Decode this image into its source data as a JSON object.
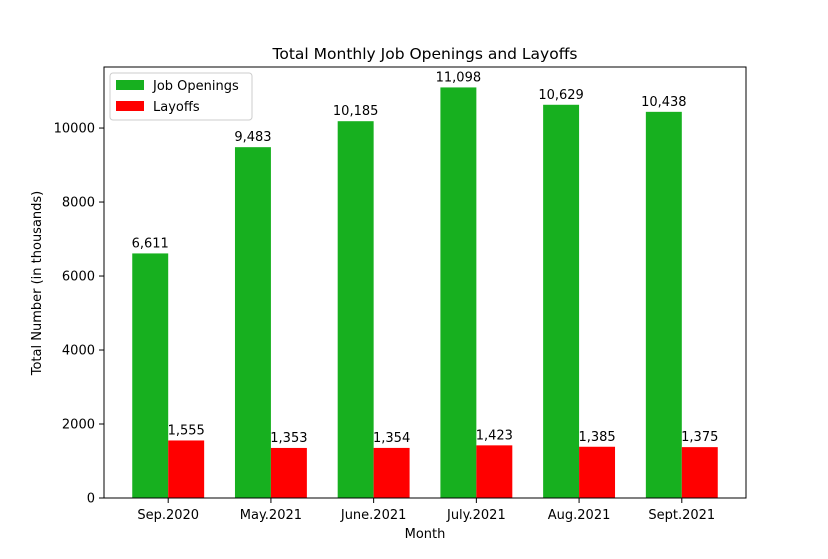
{
  "chart_data": {
    "type": "bar",
    "title": "Total Monthly Job Openings and Layoffs",
    "xlabel": "Month",
    "ylabel": "Total Number (in thousands)",
    "categories": [
      "Sep.2020",
      "May.2021",
      "June.2021",
      "July.2021",
      "Aug.2021",
      "Sept.2021"
    ],
    "series": [
      {
        "name": "Job Openings",
        "color": "#17b01f",
        "values": [
          6611,
          9483,
          10185,
          11098,
          10629,
          10438
        ],
        "labels": [
          "6,611",
          "9,483",
          "10,185",
          "11,098",
          "10,629",
          "10,438"
        ]
      },
      {
        "name": "Layoffs",
        "color": "#ff0000",
        "values": [
          1555,
          1353,
          1354,
          1423,
          1385,
          1375
        ],
        "labels": [
          "1,555",
          "1,353",
          "1,354",
          "1,423",
          "1,385",
          "1,375"
        ]
      }
    ],
    "ylim": [
      0,
      11650
    ],
    "yticks": [
      0,
      2000,
      4000,
      6000,
      8000,
      10000
    ],
    "ytick_labels": [
      "0",
      "2000",
      "4000",
      "6000",
      "8000",
      "10000"
    ],
    "grid": false,
    "legend_position": "top-left"
  }
}
